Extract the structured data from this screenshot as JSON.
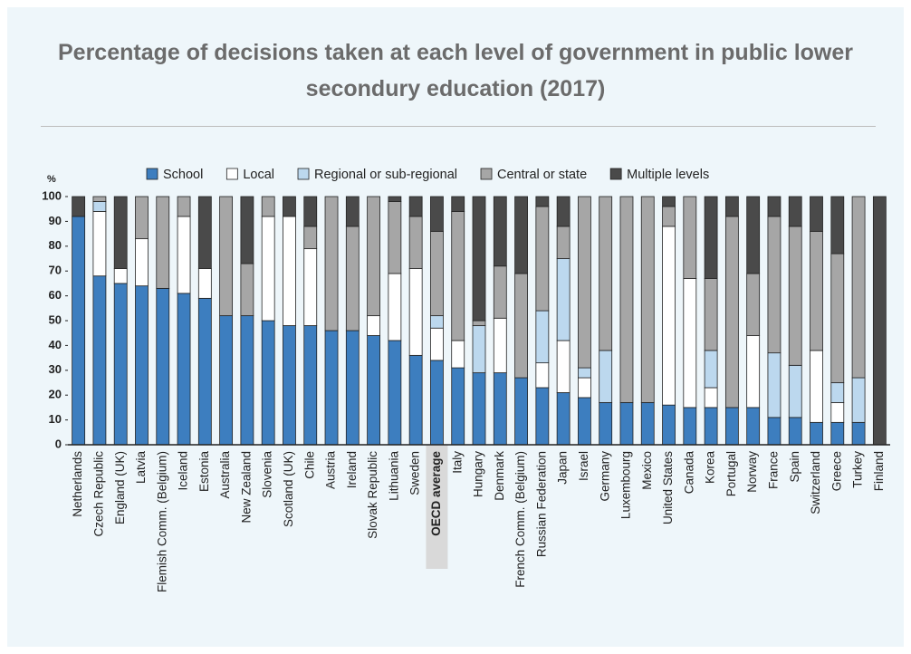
{
  "chart_data": {
    "type": "stacked_bar",
    "title": "Percentage of decisions taken at each level of government in public lower secondury education (2017)",
    "ylabel": "%",
    "ylim": [
      0,
      100
    ],
    "yticks": [
      0,
      10,
      20,
      30,
      40,
      50,
      60,
      70,
      80,
      90,
      100
    ],
    "highlight": 17,
    "categories": [
      "Netherlands",
      "Czech Republic",
      "England (UK)",
      "Latvia",
      "Flemish Comm. (Belgium)",
      "Iceland",
      "Estonia",
      "Australia",
      "New Zealand",
      "Slovenia",
      "Scotland (UK)",
      "Chile",
      "Austria",
      "Ireland",
      "Slovak Republic",
      "Lithuania",
      "Sweden",
      "OECD average",
      "Italy",
      "Hungary",
      "Denmark",
      "French Comm. (Belgium)",
      "Russian Federation",
      "Japan",
      "Israel",
      "Germany",
      "Luxembourg",
      "Mexico",
      "United States",
      "Canada",
      "Korea",
      "Portugal",
      "Norway",
      "France",
      "Spain",
      "Switzerland",
      "Greece",
      "Turkey",
      "Finland"
    ],
    "series": [
      {
        "name": "School",
        "color": "#3d7ebf",
        "values": [
          92,
          68,
          65,
          64,
          63,
          61,
          59,
          52,
          52,
          50,
          48,
          48,
          46,
          46,
          44,
          42,
          36,
          34,
          31,
          29,
          29,
          27,
          23,
          21,
          19,
          17,
          17,
          17,
          16,
          15,
          15,
          15,
          15,
          11,
          11,
          9,
          9,
          9,
          0
        ]
      },
      {
        "name": "Local",
        "color": "#ffffff",
        "values": [
          0,
          26,
          6,
          19,
          0,
          31,
          12,
          0,
          0,
          42,
          44,
          31,
          0,
          0,
          8,
          27,
          35,
          13,
          11,
          0,
          22,
          0,
          10,
          21,
          8,
          0,
          0,
          0,
          72,
          52,
          8,
          0,
          29,
          0,
          0,
          29,
          8,
          0,
          0
        ]
      },
      {
        "name": "Regional or sub-regional",
        "color": "#bcd8ee",
        "values": [
          0,
          4,
          0,
          0,
          0,
          0,
          0,
          0,
          0,
          0,
          0,
          0,
          0,
          0,
          0,
          0,
          0,
          5,
          0,
          19,
          0,
          0,
          21,
          33,
          4,
          21,
          0,
          0,
          0,
          0,
          15,
          0,
          0,
          26,
          21,
          0,
          8,
          18,
          0
        ]
      },
      {
        "name": "Central or state",
        "color": "#a6a6a6",
        "values": [
          0,
          2,
          0,
          17,
          37,
          8,
          0,
          48,
          21,
          8,
          0,
          9,
          54,
          42,
          48,
          29,
          21,
          34,
          52,
          2,
          21,
          42,
          42,
          13,
          69,
          62,
          83,
          83,
          8,
          33,
          29,
          77,
          25,
          55,
          56,
          48,
          52,
          73,
          0
        ]
      },
      {
        "name": "Multiple levels",
        "color": "#4a4a4a",
        "values": [
          8,
          0,
          29,
          0,
          0,
          0,
          29,
          0,
          27,
          0,
          8,
          12,
          0,
          12,
          0,
          2,
          8,
          14,
          6,
          50,
          28,
          31,
          4,
          12,
          0,
          0,
          0,
          0,
          4,
          0,
          33,
          8,
          31,
          8,
          12,
          14,
          23,
          0,
          100
        ]
      }
    ]
  }
}
